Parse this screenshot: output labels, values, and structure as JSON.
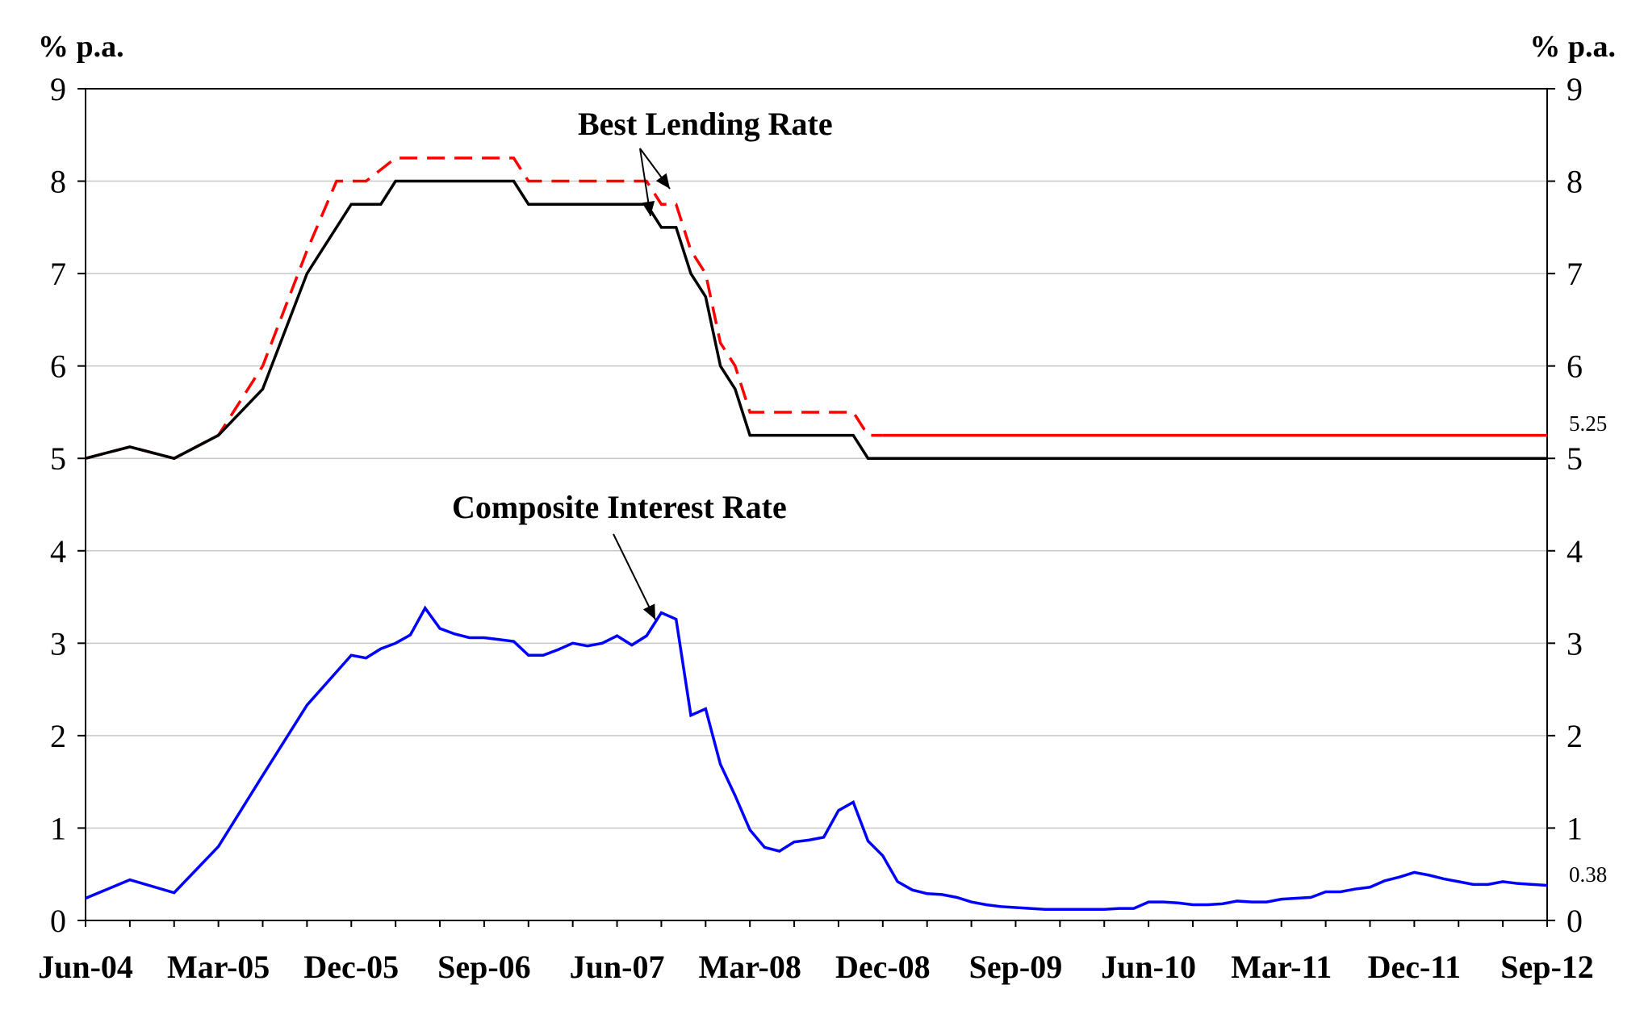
{
  "chart_data": {
    "type": "line",
    "title": "",
    "y_unit_left": "% p.a.",
    "y_unit_right": "% p.a.",
    "ylim": [
      0,
      9
    ],
    "y_ticks": [
      0,
      1,
      2,
      3,
      4,
      5,
      6,
      7,
      8,
      9
    ],
    "y_tick_labels": [
      "0",
      "1",
      "2",
      "3",
      "4",
      "5",
      "6",
      "7",
      "8",
      "9"
    ],
    "x_start": "Jun-04",
    "x_end": "Sep-12",
    "x_tick_labels": [
      "Jun-04",
      "Mar-05",
      "Dec-05",
      "Sep-06",
      "Jun-07",
      "Mar-08",
      "Dec-08",
      "Sep-09",
      "Jun-10",
      "Mar-11",
      "Dec-11",
      "Sep-12"
    ],
    "grid": true,
    "annotations": {
      "best_lending_rate": "Best Lending Rate",
      "composite_interest_rate": "Composite Interest Rate",
      "end_label_red": "5.25",
      "end_label_blue": "0.38"
    },
    "series": [
      {
        "color": "#ff0000",
        "style": "dashed-then-solid",
        "points": [
          [
            "Jun-04",
            5.0
          ],
          [
            "Sep-04",
            5.125
          ],
          [
            "Dec-04",
            5.0
          ],
          [
            "Mar-05",
            5.25
          ],
          [
            "Jun-05",
            6.0
          ],
          [
            "Sep-05",
            7.25
          ],
          [
            "Nov-05",
            8.0
          ],
          [
            "Jan-06",
            8.0
          ],
          [
            "Mar-06",
            8.25
          ],
          [
            "Jul-06",
            8.25
          ],
          [
            "Aug-06",
            8.25
          ],
          [
            "Nov-06",
            8.25
          ],
          [
            "Dec-06",
            8.0
          ],
          [
            "Jan-07",
            8.0
          ],
          [
            "Aug-07",
            8.0
          ],
          [
            "Sep-07",
            7.75
          ],
          [
            "Oct-07",
            7.75
          ],
          [
            "Nov-07",
            7.25
          ],
          [
            "Dec-07",
            7.0
          ],
          [
            "Jan-08",
            6.25
          ],
          [
            "Feb-08",
            6.0
          ],
          [
            "Mar-08",
            5.5
          ],
          [
            "Oct-08",
            5.5
          ],
          [
            "Nov-08",
            5.25
          ],
          [
            "Dec-08",
            5.25
          ],
          [
            "Sep-12",
            5.25
          ]
        ]
      },
      {
        "color": "#000000",
        "style": "solid",
        "points": [
          [
            "Jun-04",
            5.0
          ],
          [
            "Sep-04",
            5.125
          ],
          [
            "Dec-04",
            5.0
          ],
          [
            "Mar-05",
            5.25
          ],
          [
            "Jun-05",
            5.75
          ],
          [
            "Sep-05",
            7.0
          ],
          [
            "Dec-05",
            7.75
          ],
          [
            "Feb-06",
            7.75
          ],
          [
            "Mar-06",
            8.0
          ],
          [
            "Aug-06",
            8.0
          ],
          [
            "Nov-06",
            8.0
          ],
          [
            "Dec-06",
            7.75
          ],
          [
            "Aug-07",
            7.75
          ],
          [
            "Sep-07",
            7.5
          ],
          [
            "Oct-07",
            7.5
          ],
          [
            "Nov-07",
            7.0
          ],
          [
            "Dec-07",
            6.75
          ],
          [
            "Jan-08",
            6.0
          ],
          [
            "Feb-08",
            5.75
          ],
          [
            "Mar-08",
            5.25
          ],
          [
            "Oct-08",
            5.25
          ],
          [
            "Nov-08",
            5.0
          ],
          [
            "Sep-12",
            5.0
          ]
        ]
      },
      {
        "color": "#0000ff",
        "style": "solid",
        "points": [
          [
            "Jun-04",
            0.24
          ],
          [
            "Sep-04",
            0.44
          ],
          [
            "Dec-04",
            0.3
          ],
          [
            "Mar-05",
            0.8
          ],
          [
            "Jun-05",
            1.57
          ],
          [
            "Sep-05",
            2.33
          ],
          [
            "Dec-05",
            2.87
          ],
          [
            "Jan-06",
            2.84
          ],
          [
            "Feb-06",
            2.94
          ],
          [
            "Mar-06",
            3.0
          ],
          [
            "Apr-06",
            3.09
          ],
          [
            "May-06",
            3.38
          ],
          [
            "Jun-06",
            3.16
          ],
          [
            "Jul-06",
            3.1
          ],
          [
            "Aug-06",
            3.06
          ],
          [
            "Sep-06",
            3.06
          ],
          [
            "Oct-06",
            3.04
          ],
          [
            "Nov-06",
            3.02
          ],
          [
            "Dec-06",
            2.87
          ],
          [
            "Jan-07",
            2.87
          ],
          [
            "Feb-07",
            2.93
          ],
          [
            "Mar-07",
            3.0
          ],
          [
            "Apr-07",
            2.97
          ],
          [
            "May-07",
            3.0
          ],
          [
            "Jun-07",
            3.08
          ],
          [
            "Jul-07",
            2.98
          ],
          [
            "Aug-07",
            3.08
          ],
          [
            "Sep-07",
            3.33
          ],
          [
            "Oct-07",
            3.26
          ],
          [
            "Nov-07",
            2.22
          ],
          [
            "Dec-07",
            2.29
          ],
          [
            "Jan-08",
            1.69
          ],
          [
            "Feb-08",
            1.35
          ],
          [
            "Mar-08",
            0.98
          ],
          [
            "Apr-08",
            0.79
          ],
          [
            "May-08",
            0.75
          ],
          [
            "Jun-08",
            0.85
          ],
          [
            "Jul-08",
            0.87
          ],
          [
            "Aug-08",
            0.9
          ],
          [
            "Sep-08",
            1.19
          ],
          [
            "Oct-08",
            1.28
          ],
          [
            "Nov-08",
            0.86
          ],
          [
            "Dec-08",
            0.7
          ],
          [
            "Jan-09",
            0.42
          ],
          [
            "Feb-09",
            0.33
          ],
          [
            "Mar-09",
            0.29
          ],
          [
            "Apr-09",
            0.28
          ],
          [
            "May-09",
            0.25
          ],
          [
            "Jun-09",
            0.2
          ],
          [
            "Jul-09",
            0.17
          ],
          [
            "Aug-09",
            0.15
          ],
          [
            "Sep-09",
            0.14
          ],
          [
            "Oct-09",
            0.13
          ],
          [
            "Nov-09",
            0.12
          ],
          [
            "Dec-09",
            0.12
          ],
          [
            "Jan-10",
            0.12
          ],
          [
            "Feb-10",
            0.12
          ],
          [
            "Mar-10",
            0.12
          ],
          [
            "Apr-10",
            0.13
          ],
          [
            "May-10",
            0.13
          ],
          [
            "Jun-10",
            0.2
          ],
          [
            "Jul-10",
            0.2
          ],
          [
            "Aug-10",
            0.19
          ],
          [
            "Sep-10",
            0.17
          ],
          [
            "Oct-10",
            0.17
          ],
          [
            "Nov-10",
            0.18
          ],
          [
            "Dec-10",
            0.21
          ],
          [
            "Jan-11",
            0.2
          ],
          [
            "Feb-11",
            0.2
          ],
          [
            "Mar-11",
            0.23
          ],
          [
            "Apr-11",
            0.24
          ],
          [
            "May-11",
            0.25
          ],
          [
            "Jun-11",
            0.31
          ],
          [
            "Jul-11",
            0.31
          ],
          [
            "Aug-11",
            0.34
          ],
          [
            "Sep-11",
            0.36
          ],
          [
            "Oct-11",
            0.43
          ],
          [
            "Nov-11",
            0.47
          ],
          [
            "Dec-11",
            0.52
          ],
          [
            "Jan-12",
            0.49
          ],
          [
            "Feb-12",
            0.45
          ],
          [
            "Mar-12",
            0.42
          ],
          [
            "Apr-12",
            0.39
          ],
          [
            "May-12",
            0.39
          ],
          [
            "Jun-12",
            0.42
          ],
          [
            "Jul-12",
            0.4
          ],
          [
            "Aug-12",
            0.39
          ],
          [
            "Sep-12",
            0.38
          ]
        ]
      }
    ]
  }
}
